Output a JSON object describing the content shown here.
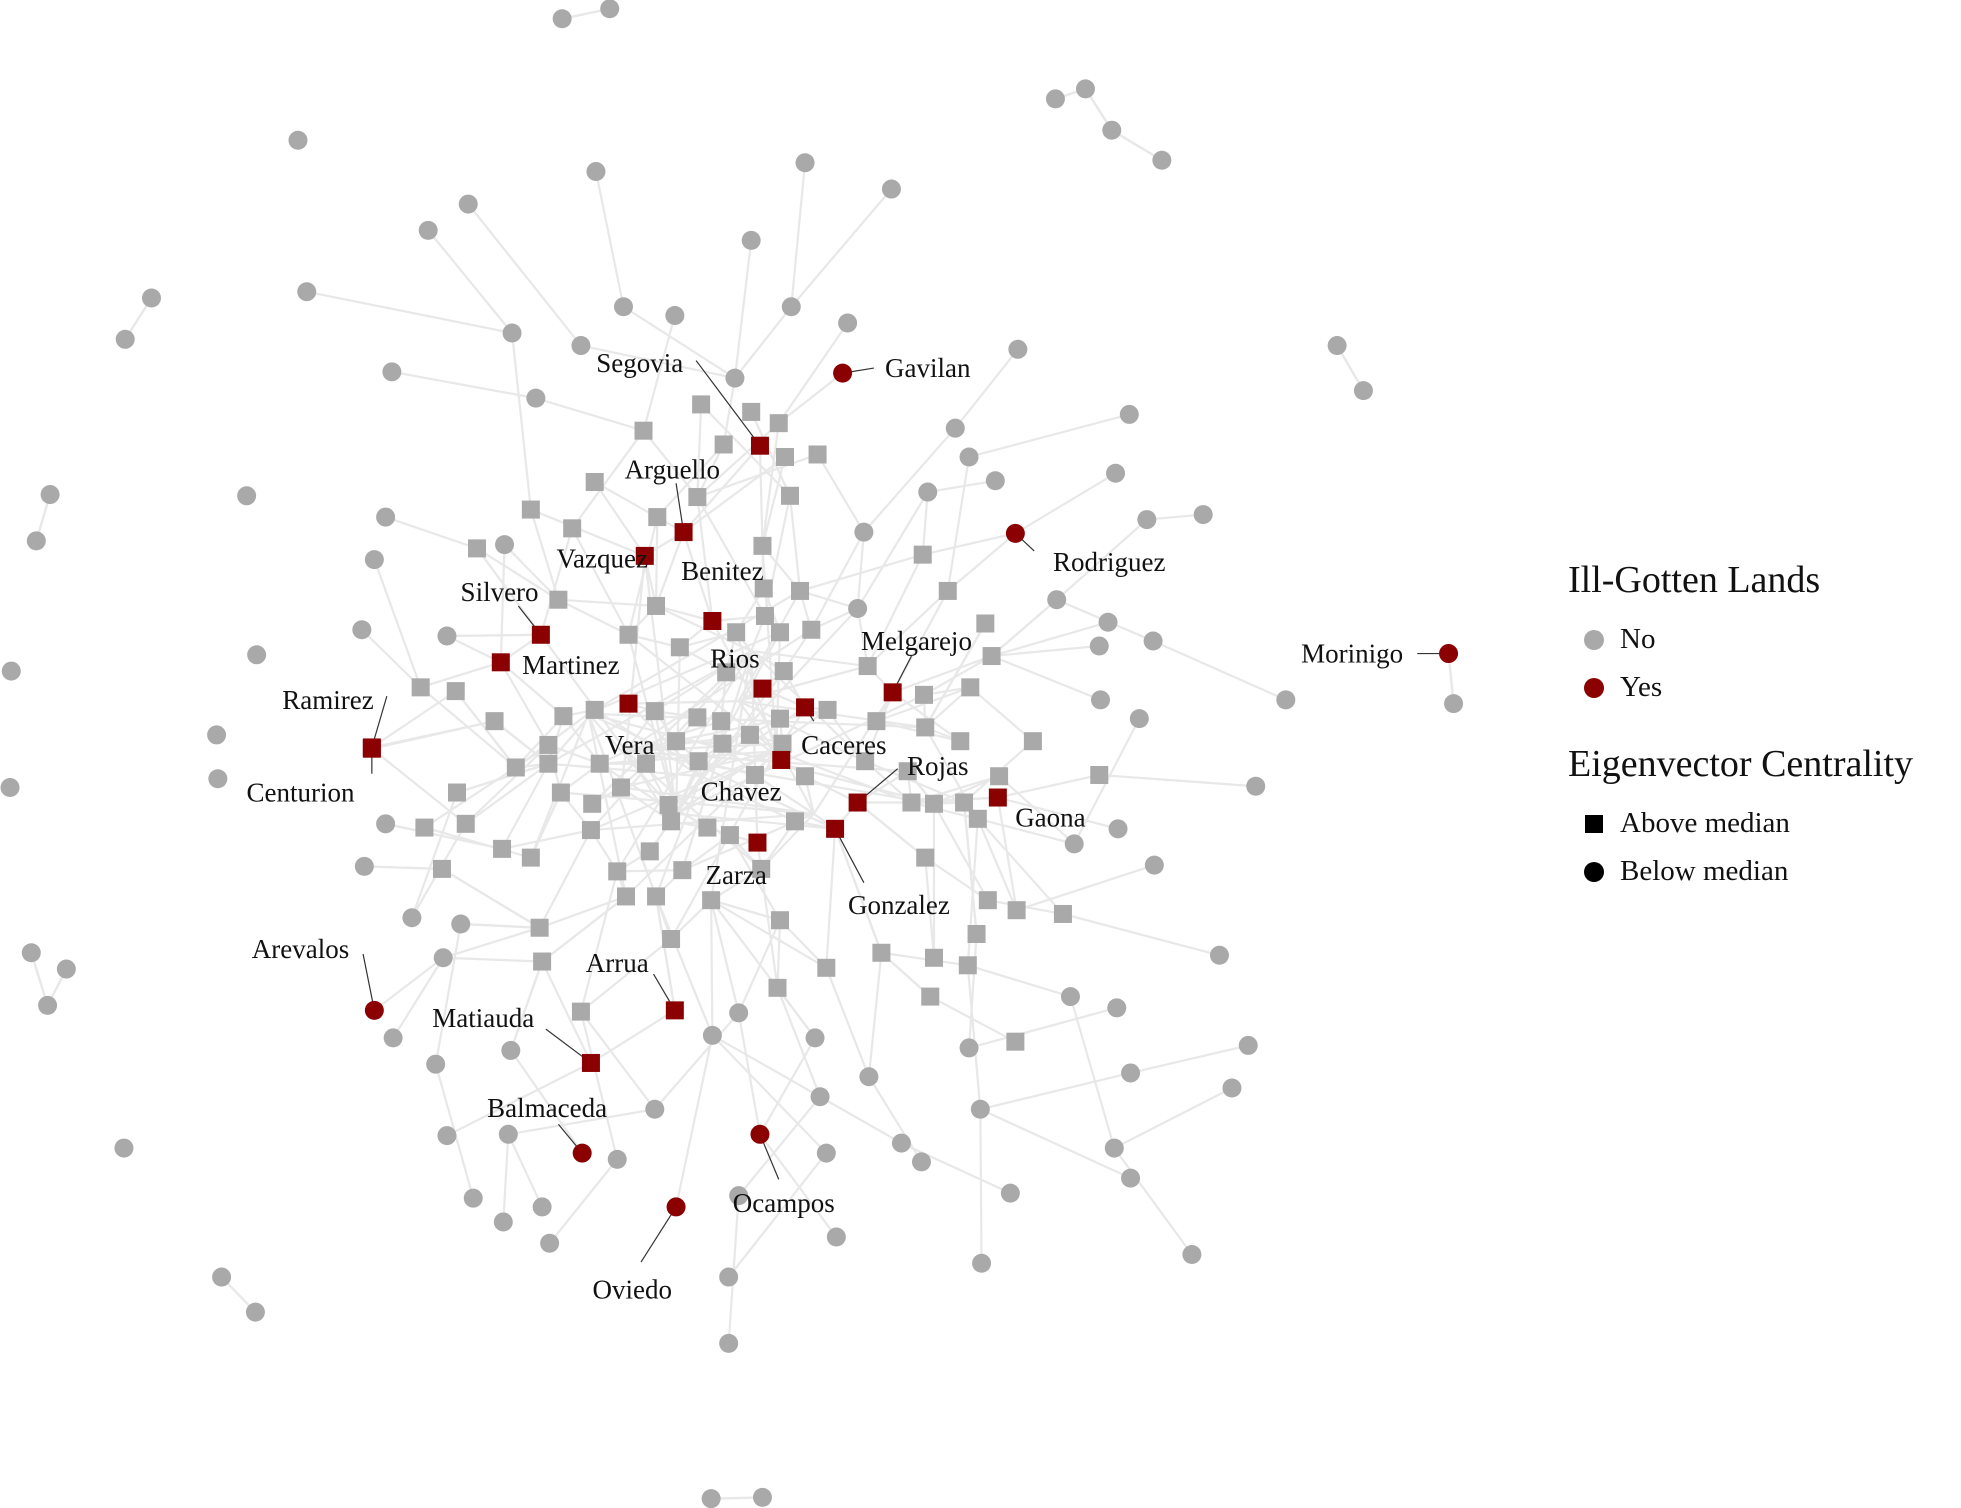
{
  "colors": {
    "no": "#a9a9a9",
    "yes": "#8b0000",
    "edge": "#e8e8e8",
    "leader": "#333333",
    "legend_shape": "#000000"
  },
  "legend": {
    "fill_title": "Ill-Gotten Lands",
    "fill_items": [
      {
        "label": "No",
        "color": "#a9a9a9"
      },
      {
        "label": "Yes",
        "color": "#8b0000"
      }
    ],
    "shape_title": "Eigenvector Centrality",
    "shape_items": [
      {
        "label": "Above median",
        "shape": "square"
      },
      {
        "label": "Below median",
        "shape": "circle"
      }
    ]
  },
  "labeled_nodes": [
    {
      "name": "Segovia",
      "ill_gotten": "Yes",
      "centrality": "Above median"
    },
    {
      "name": "Gavilan",
      "ill_gotten": "Yes",
      "centrality": "Below median"
    },
    {
      "name": "Arguello",
      "ill_gotten": "Yes",
      "centrality": "Above median"
    },
    {
      "name": "Vazquez",
      "ill_gotten": "Yes",
      "centrality": "Above median"
    },
    {
      "name": "Benitez",
      "ill_gotten": "Yes",
      "centrality": "Above median"
    },
    {
      "name": "Rodriguez",
      "ill_gotten": "Yes",
      "centrality": "Below median"
    },
    {
      "name": "Silvero",
      "ill_gotten": "Yes",
      "centrality": "Above median"
    },
    {
      "name": "Melgarejo",
      "ill_gotten": "Yes",
      "centrality": "Above median"
    },
    {
      "name": "Morinigo",
      "ill_gotten": "Yes",
      "centrality": "Below median"
    },
    {
      "name": "Martinez",
      "ill_gotten": "Yes",
      "centrality": "Above median"
    },
    {
      "name": "Rios",
      "ill_gotten": "Yes",
      "centrality": "Above median"
    },
    {
      "name": "Ramirez",
      "ill_gotten": "Yes",
      "centrality": "Above median"
    },
    {
      "name": "Vera",
      "ill_gotten": "Yes",
      "centrality": "Above median"
    },
    {
      "name": "Caceres",
      "ill_gotten": "Yes",
      "centrality": "Above median"
    },
    {
      "name": "Rojas",
      "ill_gotten": "Yes",
      "centrality": "Above median"
    },
    {
      "name": "Centurion",
      "ill_gotten": "Yes",
      "centrality": "Above median"
    },
    {
      "name": "Chavez",
      "ill_gotten": "Yes",
      "centrality": "Above median"
    },
    {
      "name": "Gaona",
      "ill_gotten": "Yes",
      "centrality": "Above median"
    },
    {
      "name": "Zarza",
      "ill_gotten": "Yes",
      "centrality": "Above median"
    },
    {
      "name": "Gonzalez",
      "ill_gotten": "Yes",
      "centrality": "Above median"
    },
    {
      "name": "Arevalos",
      "ill_gotten": "Yes",
      "centrality": "Below median"
    },
    {
      "name": "Arrua",
      "ill_gotten": "Yes",
      "centrality": "Above median"
    },
    {
      "name": "Matiauda",
      "ill_gotten": "Yes",
      "centrality": "Above median"
    },
    {
      "name": "Balmaceda",
      "ill_gotten": "Yes",
      "centrality": "Below median"
    },
    {
      "name": "Ocampos",
      "ill_gotten": "Yes",
      "centrality": "Below median"
    },
    {
      "name": "Oviedo",
      "ill_gotten": "Yes",
      "centrality": "Below median"
    }
  ]
}
